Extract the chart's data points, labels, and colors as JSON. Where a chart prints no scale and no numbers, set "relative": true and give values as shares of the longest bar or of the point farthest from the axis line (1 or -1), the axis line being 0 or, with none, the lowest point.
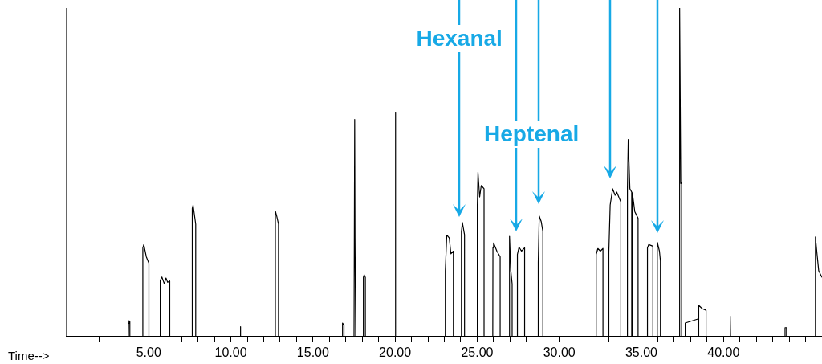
{
  "chart_data": {
    "type": "line",
    "relative": true,
    "xlabel": "Time-->",
    "marker": "none",
    "line_style": "solid",
    "legend": false,
    "grid": false,
    "tick_labels": "x",
    "xlim": [
      0,
      46
    ],
    "xticks": [
      {
        "value": 1,
        "label": null
      },
      {
        "value": 2,
        "label": null
      },
      {
        "value": 3,
        "label": null
      },
      {
        "value": 4,
        "label": null
      },
      {
        "value": 5,
        "label": "5.00"
      },
      {
        "value": 6,
        "label": null
      },
      {
        "value": 7,
        "label": null
      },
      {
        "value": 8,
        "label": null
      },
      {
        "value": 9,
        "label": null
      },
      {
        "value": 10,
        "label": "10.00"
      },
      {
        "value": 11,
        "label": null
      },
      {
        "value": 12,
        "label": null
      },
      {
        "value": 13,
        "label": null
      },
      {
        "value": 14,
        "label": null
      },
      {
        "value": 15,
        "label": "15.00"
      },
      {
        "value": 16,
        "label": null
      },
      {
        "value": 17,
        "label": null
      },
      {
        "value": 18,
        "label": null
      },
      {
        "value": 19,
        "label": null
      },
      {
        "value": 20,
        "label": "20.00"
      },
      {
        "value": 21,
        "label": null
      },
      {
        "value": 22,
        "label": null
      },
      {
        "value": 23,
        "label": null
      },
      {
        "value": 24,
        "label": null
      },
      {
        "value": 25,
        "label": "25.00"
      },
      {
        "value": 26,
        "label": null
      },
      {
        "value": 27,
        "label": null
      },
      {
        "value": 28,
        "label": null
      },
      {
        "value": 29,
        "label": null
      },
      {
        "value": 30,
        "label": "30.00"
      },
      {
        "value": 31,
        "label": null
      },
      {
        "value": 32,
        "label": null
      },
      {
        "value": 33,
        "label": null
      },
      {
        "value": 34,
        "label": null
      },
      {
        "value": 35,
        "label": "35.00"
      },
      {
        "value": 36,
        "label": null
      },
      {
        "value": 37,
        "label": null
      },
      {
        "value": 38,
        "label": null
      },
      {
        "value": 39,
        "label": null
      },
      {
        "value": 40,
        "label": "40.00"
      },
      {
        "value": 41,
        "label": null
      },
      {
        "value": 42,
        "label": null
      },
      {
        "value": 43,
        "label": null
      },
      {
        "value": 44,
        "label": null
      },
      {
        "value": 45,
        "label": null
      }
    ],
    "annotations": [
      "Hexanal",
      "Heptenal"
    ],
    "series": [
      {
        "color": "#000000",
        "x": [
          0.1,
          3.76,
          3.77,
          3.8,
          3.85,
          3.85,
          4.64,
          4.64,
          4.7,
          4.85,
          5.01,
          5.01,
          5.7,
          5.7,
          5.8,
          5.95,
          6.05,
          6.15,
          6.28,
          6.28,
          7.65,
          7.65,
          7.7,
          7.86,
          7.86,
          10.56,
          10.58,
          10.6,
          12.71,
          12.71,
          12.8,
          12.9,
          12.9,
          16.77,
          16.8,
          16.89,
          16.89,
          17.5,
          17.54,
          17.56,
          17.6,
          18.07,
          18.07,
          18.12,
          18.19,
          18.19,
          20.0,
          20.02,
          20.04,
          23.06,
          23.06,
          23.15,
          23.3,
          23.4,
          23.55,
          23.55,
          24.04,
          24.04,
          24.1,
          24.23,
          24.23,
          25.01,
          25.01,
          25.05,
          25.15,
          25.25,
          25.42,
          25.42,
          25.95,
          25.96,
          26.0,
          26.2,
          26.4,
          26.4,
          26.97,
          26.97,
          27.05,
          27.13,
          27.13,
          27.45,
          27.45,
          27.55,
          27.7,
          27.89,
          27.89,
          28.72,
          28.72,
          28.78,
          28.9,
          29.0,
          29.0,
          32.25,
          32.25,
          32.35,
          32.5,
          32.66,
          32.66,
          33.02,
          33.02,
          33.1,
          33.25,
          33.4,
          33.5,
          33.75,
          33.75,
          34.15,
          34.15,
          34.2,
          34.3,
          34.41,
          34.41,
          34.45,
          34.45,
          34.6,
          34.8,
          34.8,
          35.37,
          35.37,
          35.45,
          35.7,
          35.7,
          35.94,
          35.97,
          36.1,
          36.16,
          36.16,
          37.31,
          37.33,
          37.4,
          37.45,
          37.45,
          37.67,
          37.67,
          38.48,
          38.48,
          38.5,
          38.5,
          38.7,
          38.94,
          38.94,
          40.39,
          40.41,
          40.43,
          43.75,
          43.75,
          43.84,
          43.84,
          45.59,
          45.6,
          45.7,
          45.8,
          46.0
        ],
        "values": [
          0,
          0,
          0.04,
          0.048,
          0.045,
          0,
          0,
          0.27,
          0.28,
          0.243,
          0.223,
          0,
          0,
          0.17,
          0.181,
          0.16,
          0.178,
          0.165,
          0.169,
          0,
          0,
          0.39,
          0.4,
          0.342,
          0,
          0,
          0.03,
          0,
          0,
          0.382,
          0.365,
          0.342,
          0,
          0,
          0.041,
          0.035,
          0,
          0,
          0.661,
          0.3,
          0,
          0,
          0.18,
          0.188,
          0.18,
          0,
          0,
          0.681,
          0,
          0,
          0.2,
          0.309,
          0.3,
          0.252,
          0.26,
          0,
          0,
          0.32,
          0.347,
          0.31,
          0,
          0,
          0.4,
          0.5,
          0.425,
          0.46,
          0.45,
          0,
          0,
          0.27,
          0.285,
          0.26,
          0.243,
          0,
          0,
          0.305,
          0.2,
          0.16,
          0,
          0,
          0.25,
          0.272,
          0.26,
          0.27,
          0,
          0,
          0.225,
          0.367,
          0.35,
          0.32,
          0,
          0,
          0.25,
          0.268,
          0.26,
          0.268,
          0,
          0,
          0.257,
          0.4,
          0.45,
          0.43,
          0.44,
          0.41,
          0,
          0,
          0.45,
          0.6,
          0.45,
          0.44,
          0,
          0,
          0.438,
          0.38,
          0.36,
          0,
          0,
          0.27,
          0.28,
          0.275,
          0,
          0,
          0.287,
          0.26,
          0.23,
          0,
          0,
          1.0,
          0.466,
          0.47,
          0,
          0,
          0.041,
          0.054,
          0,
          0,
          0.095,
          0.085,
          0.08,
          0,
          0,
          0.062,
          0,
          0,
          0.027,
          0.027,
          0,
          0,
          0.303,
          0.25,
          0.2,
          0.18
        ]
      }
    ]
  }
}
